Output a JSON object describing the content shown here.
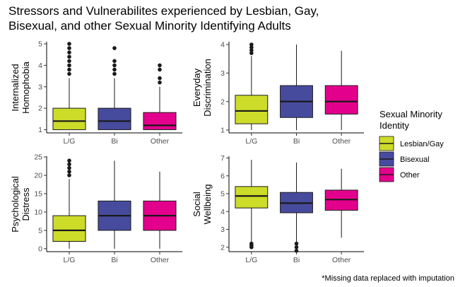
{
  "title": "Stressors and Vulnerabilites experienced by Lesbian, Gay,\nBisexual, and other Sexual Minority Identifying Adults",
  "footnote": "*Missing data replaced with imputation",
  "colors": {
    "L/G": "#cddc29",
    "Bi": "#474b9e",
    "Other": "#e3008c"
  },
  "legend": {
    "title_line1": "Sexual Minority",
    "title_line2": "Identity",
    "items": [
      {
        "label": "Lesbian/Gay",
        "key": "L/G"
      },
      {
        "label": "Bisexual",
        "key": "Bi"
      },
      {
        "label": "Other",
        "key": "Other"
      }
    ]
  },
  "chart_data": [
    {
      "type": "boxplot",
      "ylabel": [
        "Internalized",
        "Homophobia"
      ],
      "categories": [
        "L/G",
        "Bi",
        "Other"
      ],
      "ylim": [
        0.85,
        5.1
      ],
      "yticks": [
        1,
        2,
        3,
        4,
        5
      ],
      "boxes": [
        {
          "category": "L/G",
          "min": 1,
          "q1": 1.0,
          "median": 1.4,
          "q3": 2.0,
          "max": 3.4,
          "outliers": [
            3.6,
            3.8,
            4.0,
            4.2,
            4.4,
            4.6,
            4.8,
            5.0
          ]
        },
        {
          "category": "Bi",
          "min": 1,
          "q1": 1.0,
          "median": 1.4,
          "q3": 2.0,
          "max": 3.4,
          "outliers": [
            3.6,
            3.8,
            4.0,
            4.2,
            4.8
          ]
        },
        {
          "category": "Other",
          "min": 1,
          "q1": 1.0,
          "median": 1.2,
          "q3": 1.8,
          "max": 3.0,
          "outliers": [
            3.2,
            3.4,
            3.8,
            4.0
          ]
        }
      ]
    },
    {
      "type": "boxplot",
      "ylabel": [
        "Everyday",
        "Discrimination"
      ],
      "categories": [
        "L/G",
        "Bi",
        "Other"
      ],
      "ylim": [
        0.9,
        4.1
      ],
      "yticks": [
        1,
        2,
        3,
        4
      ],
      "boxes": [
        {
          "category": "L/G",
          "min": 1,
          "q1": 1.22,
          "median": 1.67,
          "q3": 2.22,
          "max": 3.6,
          "outliers": [
            3.7,
            3.8,
            3.9,
            4.0
          ]
        },
        {
          "category": "Bi",
          "min": 1,
          "q1": 1.44,
          "median": 2.0,
          "q3": 2.56,
          "max": 4.0,
          "outliers": []
        },
        {
          "category": "Other",
          "min": 1,
          "q1": 1.56,
          "median": 2.0,
          "q3": 2.56,
          "max": 3.78,
          "outliers": []
        }
      ]
    },
    {
      "type": "boxplot",
      "ylabel": [
        "Psychological",
        "Distress"
      ],
      "categories": [
        "L/G",
        "Bi",
        "Other"
      ],
      "ylim": [
        -0.8,
        25.2
      ],
      "yticks": [
        0,
        5,
        10,
        15,
        20,
        25
      ],
      "boxes": [
        {
          "category": "L/G",
          "min": 0,
          "q1": 2,
          "median": 5,
          "q3": 9,
          "max": 19,
          "outliers": [
            20,
            21,
            22,
            23,
            24
          ]
        },
        {
          "category": "Bi",
          "min": 0,
          "q1": 5,
          "median": 9,
          "q3": 13,
          "max": 24,
          "outliers": []
        },
        {
          "category": "Other",
          "min": 0,
          "q1": 5,
          "median": 9,
          "q3": 13,
          "max": 21,
          "outliers": []
        }
      ]
    },
    {
      "type": "boxplot",
      "ylabel": [
        "Social",
        "Wellbeing"
      ],
      "categories": [
        "L/G",
        "Bi",
        "Other"
      ],
      "ylim": [
        1.75,
        7.1
      ],
      "yticks": [
        2,
        3,
        4,
        5,
        6,
        7
      ],
      "boxes": [
        {
          "category": "L/G",
          "min": 2.3,
          "q1": 4.2,
          "median": 4.87,
          "q3": 5.4,
          "max": 6.9,
          "outliers": [
            2.0,
            2.1,
            2.2
          ]
        },
        {
          "category": "Bi",
          "min": 2.3,
          "q1": 3.93,
          "median": 4.47,
          "q3": 5.07,
          "max": 6.75,
          "outliers": [
            1.8,
            2.0,
            2.2
          ]
        },
        {
          "category": "Other",
          "min": 2.53,
          "q1": 4.07,
          "median": 4.67,
          "q3": 5.2,
          "max": 6.4,
          "outliers": []
        }
      ]
    }
  ]
}
